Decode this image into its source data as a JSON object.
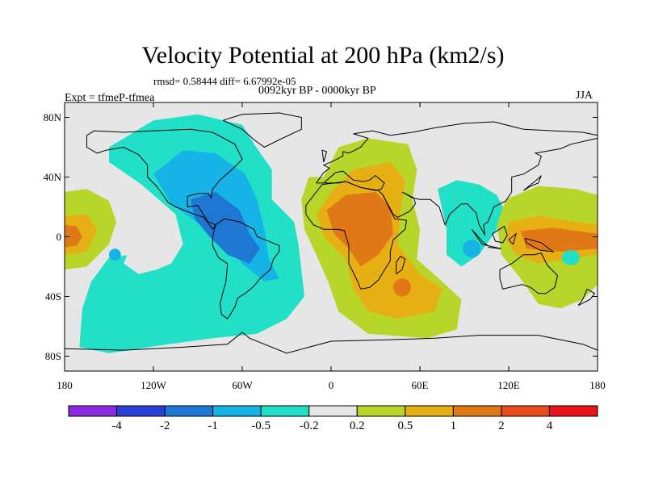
{
  "chart_data": {
    "type": "heatmap",
    "title": "Velocity Potential at 200 hPa (km2/s)",
    "stats_line": "rmsd= 0.58444 diff= 6.67992e-05",
    "experiment_label": "Expt = tfmeP-tfmea",
    "period_label": "0092kyr BP - 0000kyr BP",
    "season": "JJA",
    "x_ticks": [
      "180",
      "120W",
      "60W",
      "0",
      "60E",
      "120E",
      "180"
    ],
    "x_tick_values": [
      -180,
      -120,
      -60,
      0,
      60,
      120,
      180
    ],
    "y_ticks": [
      "80N",
      "40N",
      "0",
      "40S",
      "80S"
    ],
    "y_tick_values": [
      80,
      40,
      0,
      -40,
      -80
    ],
    "xlim": [
      -180,
      180
    ],
    "ylim": [
      -90,
      90
    ],
    "contour_levels": [
      -4,
      -2,
      -1,
      -0.5,
      -0.2,
      0.2,
      0.5,
      1,
      2,
      4
    ],
    "colorbar_labels": [
      "-4",
      "-2",
      "-1",
      "-0.5",
      "-0.2",
      "0.2",
      "0.5",
      "1",
      "2",
      "4"
    ],
    "colorbar_colors": [
      "#8a2be2",
      "#2a3fd6",
      "#1f77d4",
      "#16b4e6",
      "#22dfc8",
      "#e6e6e6",
      "#b8d62a",
      "#e6b014",
      "#e07818",
      "#e84a1c",
      "#e8141c"
    ],
    "background_color": "#e6e6e6",
    "features": [
      {
        "name": "Americas negative center",
        "lon": -70,
        "lat": 5,
        "value": -1.2
      },
      {
        "name": "Atlantic negative band",
        "lon": -40,
        "lat": -30,
        "value": -0.6
      },
      {
        "name": "South Pacific negative tongue",
        "lon": -100,
        "lat": -45,
        "value": -0.4
      },
      {
        "name": "Africa positive center",
        "lon": 25,
        "lat": 5,
        "value": 1.4
      },
      {
        "name": "South Indian Ocean positive",
        "lon": 45,
        "lat": -35,
        "value": 0.9
      },
      {
        "name": "Maritime Continent positive",
        "lon": 150,
        "lat": -5,
        "value": 1.3
      },
      {
        "name": "Dateline positive",
        "lon": -178,
        "lat": 3,
        "value": 1.1
      },
      {
        "name": "Indian Ocean negative",
        "lon": 90,
        "lat": -5,
        "value": -0.4
      }
    ]
  }
}
